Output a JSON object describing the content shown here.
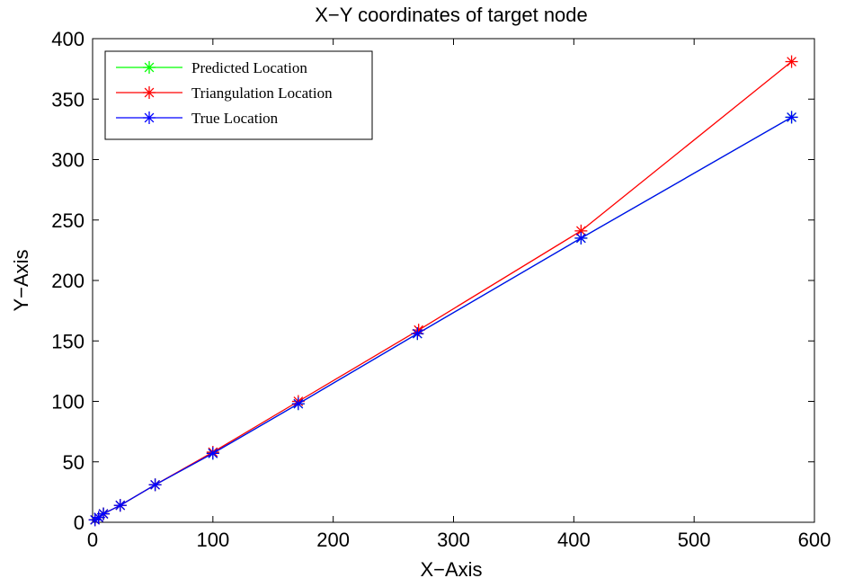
{
  "chart_data": {
    "type": "line",
    "title": "X−Y coordinates of target node",
    "xlabel": "X−Axis",
    "ylabel": "Y−Axis",
    "xlim": [
      0,
      600
    ],
    "ylim": [
      0,
      400
    ],
    "xticks": [
      0,
      100,
      200,
      300,
      400,
      500,
      600
    ],
    "yticks": [
      0,
      50,
      100,
      150,
      200,
      250,
      300,
      350,
      400
    ],
    "grid": false,
    "legend_position": "top-left",
    "series": [
      {
        "name": "Predicted Location",
        "color": "#00ff00",
        "marker": "asterisk",
        "x": [
          2,
          5,
          9,
          23,
          52,
          100,
          171,
          270,
          406,
          581
        ],
        "y": [
          2,
          4,
          7,
          14,
          31,
          57,
          98,
          156,
          235,
          335
        ]
      },
      {
        "name": "Triangulation Location",
        "color": "#ff0000",
        "marker": "asterisk",
        "x": [
          2,
          5,
          9,
          23,
          52,
          100,
          171,
          271,
          406,
          581
        ],
        "y": [
          2,
          4,
          7,
          14,
          31,
          58,
          100,
          159,
          241,
          381
        ]
      },
      {
        "name": "True Location",
        "color": "#0000ff",
        "marker": "asterisk",
        "x": [
          2,
          5,
          9,
          23,
          52,
          100,
          171,
          270,
          406,
          581
        ],
        "y": [
          2,
          4,
          7,
          14,
          31,
          57,
          98,
          156,
          235,
          335
        ]
      }
    ]
  }
}
